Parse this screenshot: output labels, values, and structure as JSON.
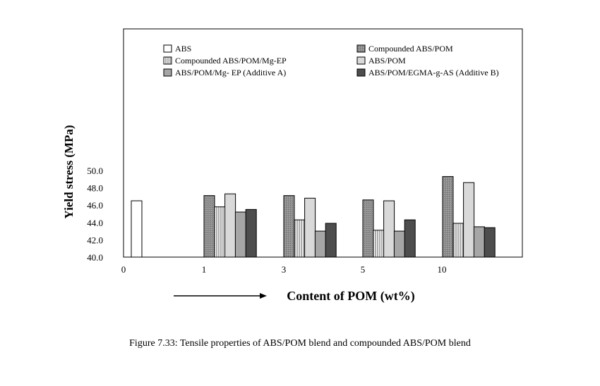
{
  "chart_data": {
    "type": "bar",
    "xlabel": "Content of POM (wt%)",
    "ylabel": "Yield stress (MPa)",
    "ylim": [
      40,
      52
    ],
    "yticks": [
      "40.0",
      "42.0",
      "44.0",
      "46.0",
      "48.0",
      "50.0"
    ],
    "categories": [
      "0",
      "1",
      "3",
      "5",
      "10"
    ],
    "legend_placement": "top",
    "series": [
      {
        "name": "ABS",
        "pattern": "white",
        "values": [
          46.5,
          null,
          null,
          null,
          null
        ]
      },
      {
        "name": "Compounded ABS/POM",
        "pattern": "dark-gray-dots",
        "values": [
          null,
          47.1,
          47.1,
          46.6,
          49.3
        ]
      },
      {
        "name": "Compounded ABS/POM/Mg-EP",
        "pattern": "vertical-stripes",
        "values": [
          null,
          45.8,
          44.3,
          43.1,
          43.9
        ]
      },
      {
        "name": "ABS/POM",
        "pattern": "light-gray",
        "values": [
          null,
          47.3,
          46.8,
          46.5,
          48.6
        ]
      },
      {
        "name": "ABS/POM/Mg- EP  (Additive A)",
        "pattern": "mid-gray",
        "values": [
          null,
          45.2,
          43.0,
          43.0,
          43.5
        ]
      },
      {
        "name": "ABS/POM/EGMA-g-AS  (Additive B)",
        "pattern": "dark",
        "values": [
          null,
          45.5,
          43.9,
          44.3,
          43.4
        ]
      }
    ],
    "colors": {
      "ABS": "#ffffff",
      "Compounded ABS/POM": "#8c8c8c",
      "Compounded ABS/POM/Mg-EP": "#ffffff",
      "ABS/POM": "#d9d9d9",
      "ABS/POM/Mg- EP  (Additive A)": "#a6a6a6",
      "ABS/POM/EGMA-g-AS  (Additive B)": "#4d4d4d"
    }
  },
  "caption": "Figure 7.33: Tensile properties of ABS/POM blend and compounded ABS/POM blend"
}
